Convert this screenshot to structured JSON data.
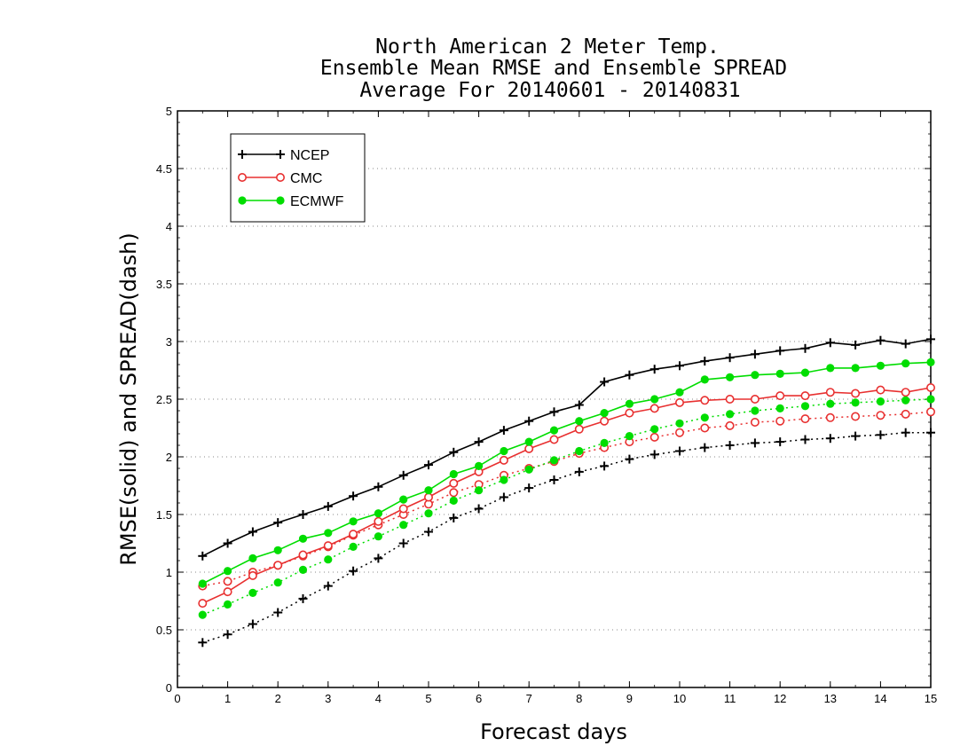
{
  "chart_data": {
    "type": "line",
    "title_lines": [
      "North American 2 Meter Temp.",
      "Ensemble Mean RMSE and Ensemble SPREAD",
      "Average For 20140601 - 20140831"
    ],
    "xlabel": "Forecast days",
    "ylabel": "RMSE(solid) and SPREAD(dash)",
    "xlim": [
      0,
      15
    ],
    "ylim": [
      0,
      5
    ],
    "x_ticks": [
      0,
      1,
      2,
      3,
      4,
      5,
      6,
      7,
      8,
      9,
      10,
      11,
      12,
      13,
      14,
      15
    ],
    "y_ticks": [
      0,
      0.5,
      1,
      1.5,
      2,
      2.5,
      3,
      3.5,
      4,
      4.5,
      5
    ],
    "y_tick_labels": [
      "0",
      "0.5",
      "1",
      "1.5",
      "2",
      "2.5",
      "3",
      "3.5",
      "4",
      "4.5",
      "5"
    ],
    "grid": "horizontal dotted",
    "legend_position": "top-left",
    "x": [
      0.5,
      1,
      1.5,
      2,
      2.5,
      3,
      3.5,
      4,
      4.5,
      5,
      5.5,
      6,
      6.5,
      7,
      7.5,
      8,
      8.5,
      9,
      9.5,
      10,
      10.5,
      11,
      11.5,
      12,
      12.5,
      13,
      13.5,
      14,
      14.5,
      15
    ],
    "series": [
      {
        "name": "NCEP",
        "color": "#000000",
        "marker": "plus",
        "rmse": [
          1.14,
          1.25,
          1.35,
          1.43,
          1.5,
          1.57,
          1.66,
          1.74,
          1.84,
          1.93,
          2.04,
          2.13,
          2.23,
          2.31,
          2.39,
          2.45,
          2.65,
          2.71,
          2.76,
          2.79,
          2.83,
          2.86,
          2.89,
          2.92,
          2.94,
          2.99,
          2.97,
          3.01,
          2.98,
          3.02
        ],
        "spread": [
          0.39,
          0.46,
          0.55,
          0.65,
          0.77,
          0.88,
          1.01,
          1.12,
          1.25,
          1.35,
          1.47,
          1.55,
          1.65,
          1.73,
          1.8,
          1.87,
          1.92,
          1.98,
          2.02,
          2.05,
          2.08,
          2.1,
          2.12,
          2.13,
          2.15,
          2.16,
          2.18,
          2.19,
          2.21,
          2.21
        ]
      },
      {
        "name": "CMC",
        "color": "#e83030",
        "marker": "open-circle",
        "rmse": [
          0.73,
          0.83,
          0.97,
          1.06,
          1.15,
          1.23,
          1.33,
          1.44,
          1.55,
          1.65,
          1.77,
          1.87,
          1.97,
          2.07,
          2.15,
          2.24,
          2.31,
          2.38,
          2.42,
          2.47,
          2.49,
          2.5,
          2.5,
          2.53,
          2.53,
          2.56,
          2.55,
          2.58,
          2.56,
          2.6
        ],
        "spread": [
          0.88,
          0.92,
          1.0,
          1.06,
          1.14,
          1.22,
          1.32,
          1.41,
          1.5,
          1.59,
          1.69,
          1.76,
          1.84,
          1.9,
          1.96,
          2.03,
          2.08,
          2.13,
          2.17,
          2.21,
          2.25,
          2.27,
          2.3,
          2.31,
          2.33,
          2.34,
          2.35,
          2.36,
          2.37,
          2.39
        ]
      },
      {
        "name": "ECMWF",
        "color": "#00dd00",
        "marker": "filled-circle",
        "rmse": [
          0.9,
          1.01,
          1.12,
          1.19,
          1.29,
          1.34,
          1.44,
          1.51,
          1.63,
          1.71,
          1.85,
          1.92,
          2.05,
          2.13,
          2.23,
          2.31,
          2.38,
          2.46,
          2.5,
          2.56,
          2.67,
          2.69,
          2.71,
          2.72,
          2.73,
          2.77,
          2.77,
          2.79,
          2.81,
          2.82
        ],
        "spread": [
          0.63,
          0.72,
          0.82,
          0.91,
          1.02,
          1.11,
          1.22,
          1.31,
          1.41,
          1.51,
          1.62,
          1.71,
          1.8,
          1.89,
          1.97,
          2.05,
          2.12,
          2.18,
          2.24,
          2.29,
          2.34,
          2.37,
          2.4,
          2.42,
          2.44,
          2.46,
          2.47,
          2.48,
          2.49,
          2.5
        ]
      }
    ]
  }
}
